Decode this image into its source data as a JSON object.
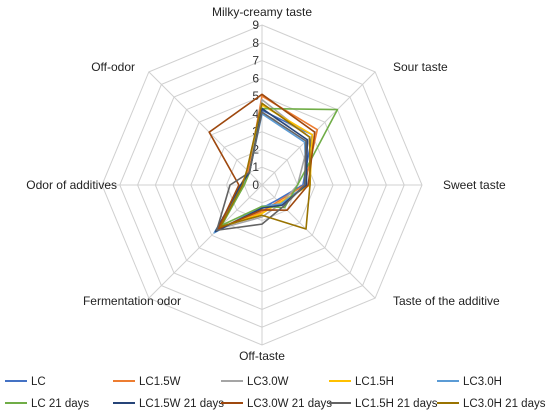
{
  "colors": {
    "grid": "#d0d0d0",
    "spoke": "#d0d0d0"
  },
  "chart_data": {
    "type": "radar",
    "title": "",
    "axes": [
      "Milky-creamy taste",
      "Sour taste",
      "Sweet taste",
      "Taste of the additive",
      "Off-taste",
      "Fermentation odor",
      "Odor of additives",
      "Off-odor"
    ],
    "rlim": [
      0,
      9
    ],
    "ticks": [
      "0",
      "1",
      "2",
      "3",
      "4",
      "5",
      "6",
      "7",
      "8",
      "9"
    ],
    "grid": true,
    "legend_position": "bottom",
    "series": [
      {
        "name": "LC",
        "color": "#4472C4",
        "values": [
          4.2,
          4.0,
          2.3,
          1.2,
          1.3,
          3.7,
          1.1,
          1.0
        ]
      },
      {
        "name": "LC1.5W",
        "color": "#ED7D31",
        "values": [
          5.0,
          4.4,
          2.4,
          1.3,
          1.5,
          3.6,
          1.2,
          1.1
        ]
      },
      {
        "name": "LC3.0W",
        "color": "#A5A5A5",
        "values": [
          4.8,
          3.8,
          2.0,
          1.5,
          1.8,
          3.5,
          1.0,
          1.0
        ]
      },
      {
        "name": "LC1.5H",
        "color": "#FFC000",
        "values": [
          4.5,
          4.0,
          2.7,
          1.4,
          1.6,
          3.4,
          1.0,
          1.0
        ]
      },
      {
        "name": "LC3.0H",
        "color": "#5B9BD5",
        "values": [
          4.0,
          3.4,
          2.5,
          1.5,
          1.2,
          3.8,
          1.1,
          1.0
        ]
      },
      {
        "name": "LC 21 days",
        "color": "#70AD47",
        "values": [
          4.3,
          6.0,
          2.0,
          1.8,
          1.2,
          3.2,
          1.0,
          1.0
        ]
      },
      {
        "name": "LC1.5W 21 days",
        "color": "#264478",
        "values": [
          4.3,
          3.6,
          2.5,
          1.6,
          1.3,
          3.7,
          1.2,
          1.0
        ]
      },
      {
        "name": "LC3.0W 21 days",
        "color": "#9E480E",
        "values": [
          5.1,
          4.2,
          2.6,
          2.0,
          1.4,
          3.5,
          1.3,
          4.2
        ]
      },
      {
        "name": "LC1.5H 21 days",
        "color": "#636363",
        "values": [
          4.1,
          3.5,
          2.4,
          1.7,
          2.2,
          3.6,
          1.8,
          1.0
        ]
      },
      {
        "name": "LC3.0H 21 days",
        "color": "#997300",
        "values": [
          4.6,
          3.8,
          2.7,
          3.5,
          1.7,
          3.3,
          1.1,
          1.2
        ]
      }
    ]
  }
}
